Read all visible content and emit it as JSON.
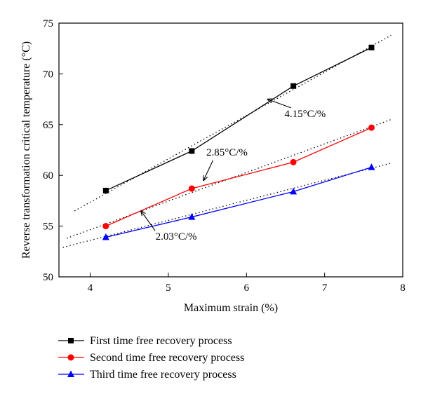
{
  "chart_data": {
    "type": "line",
    "title": "",
    "xlabel": "Maximum strain (%)",
    "ylabel": "Reverse transformation critical temperature (°C)",
    "xlim": [
      3.6,
      8
    ],
    "ylim": [
      50,
      75
    ],
    "xticks": [
      "4",
      "5",
      "6",
      "7",
      "8"
    ],
    "yticks": [
      "50",
      "55",
      "60",
      "65",
      "70",
      "75"
    ],
    "grid": false,
    "legend_position": "bottom",
    "series": [
      {
        "name": "First time free recovery process",
        "color": "#000000",
        "marker": "square",
        "x": [
          4.2,
          5.3,
          6.6,
          7.6
        ],
        "y": [
          58.5,
          62.4,
          68.8,
          72.6
        ],
        "fit": {
          "x": [
            3.8,
            7.85
          ],
          "y": [
            56.5,
            73.8
          ]
        }
      },
      {
        "name": "Second time free recovery process",
        "color": "#ff0000",
        "marker": "circle",
        "x": [
          4.2,
          5.3,
          6.6,
          7.6
        ],
        "y": [
          55.0,
          58.7,
          61.3,
          64.7
        ],
        "fit": {
          "x": [
            3.7,
            7.85
          ],
          "y": [
            53.8,
            65.5
          ]
        }
      },
      {
        "name": "Third time free recovery process",
        "color": "#0000ff",
        "marker": "triangle",
        "x": [
          4.2,
          5.3,
          6.6,
          7.6
        ],
        "y": [
          53.9,
          55.9,
          58.4,
          60.8
        ],
        "fit": {
          "x": [
            3.65,
            7.85
          ],
          "y": [
            52.9,
            61.2
          ]
        }
      }
    ],
    "annotations": [
      {
        "text": "4.15°C/%",
        "x": 6.75,
        "y": 66.1,
        "arrow_to": [
          6.27,
          67.5
        ]
      },
      {
        "text": "2.85°C/%",
        "x": 5.75,
        "y": 62.3,
        "arrow_to": [
          5.45,
          59.5
        ]
      },
      {
        "text": "2.03°C/%",
        "x": 5.1,
        "y": 54.0,
        "arrow_to": [
          4.65,
          56.5
        ]
      }
    ]
  }
}
